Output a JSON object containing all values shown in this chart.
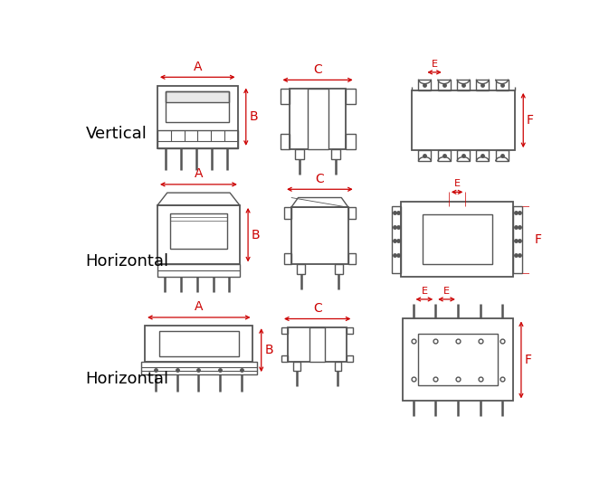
{
  "bg_color": "#ffffff",
  "line_color": "#555555",
  "dim_color": "#cc0000",
  "label_color": "#000000",
  "rows": [
    "Vertical",
    "Horizontal",
    "Horizontal"
  ],
  "figsize": [
    6.52,
    5.44
  ],
  "dpi": 100,
  "xlim": [
    0,
    652
  ],
  "ylim": [
    0,
    544
  ]
}
